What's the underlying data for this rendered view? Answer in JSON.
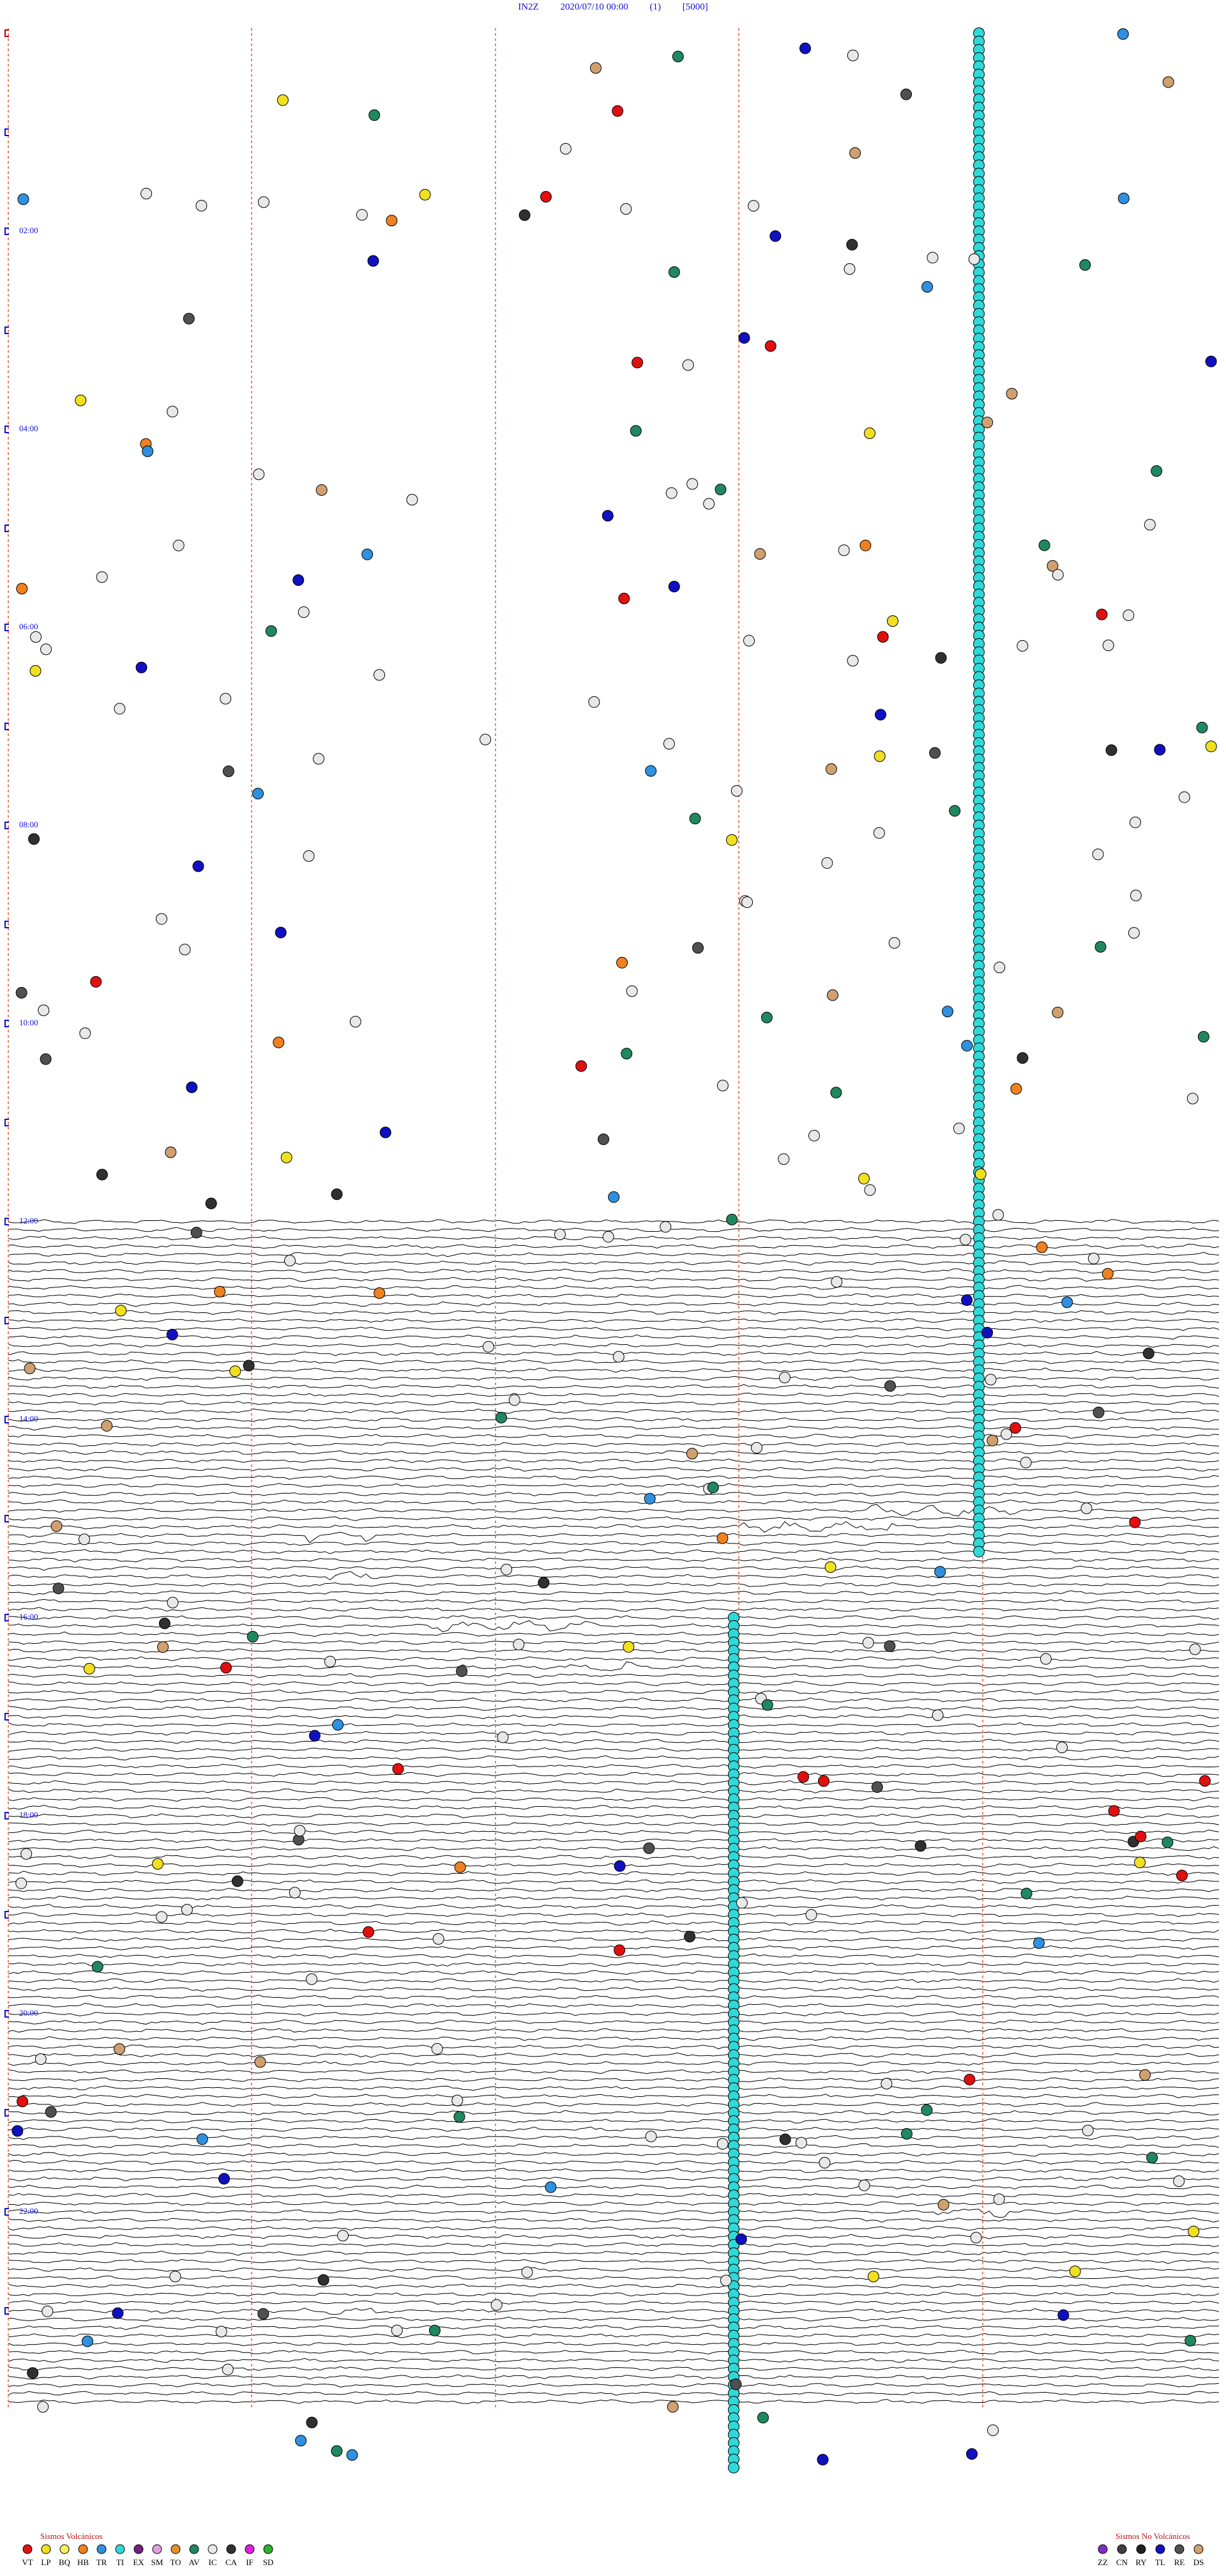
{
  "header": {
    "station": "IN2Z",
    "datetime": "2020/07/10 00:00",
    "count": "(1)",
    "scale": "[5000]"
  },
  "time_labels": [
    "02:00",
    "04:00",
    "06:00",
    "08:00",
    "10:00",
    "12:00",
    "14:00",
    "16:00",
    "18:00",
    "20:00",
    "22:00"
  ],
  "legend": {
    "volcanic": {
      "title": "Sismos Volcánicos",
      "items": [
        {
          "code": "VT",
          "color": "#e01010"
        },
        {
          "code": "LP",
          "color": "#f0e020"
        },
        {
          "code": "BQ",
          "color": "#f4f060"
        },
        {
          "code": "HB",
          "color": "#f08020"
        },
        {
          "code": "TR",
          "color": "#3090e0"
        },
        {
          "code": "TI",
          "color": "#30d8d8"
        },
        {
          "code": "EX",
          "color": "#702080"
        },
        {
          "code": "SM",
          "color": "#e0a0e0"
        },
        {
          "code": "TO",
          "color": "#e09030"
        },
        {
          "code": "AV",
          "color": "#208860"
        },
        {
          "code": "IC",
          "color": "#e8e8e8"
        },
        {
          "code": "CA",
          "color": "#303030"
        },
        {
          "code": "IF",
          "color": "#e020e0"
        },
        {
          "code": "SD",
          "color": "#30b030"
        }
      ]
    },
    "non_volcanic": {
      "title": "Sismos No Volcánicos",
      "items": [
        {
          "code": "ZZ",
          "color": "#8030c0"
        },
        {
          "code": "CN",
          "color": "#404040"
        },
        {
          "code": "RY",
          "color": "#202020"
        },
        {
          "code": "TL",
          "color": "#1010c0"
        },
        {
          "code": "RE",
          "color": "#505050"
        },
        {
          "code": "DS",
          "color": "#d0a070"
        }
      ]
    }
  }
}
